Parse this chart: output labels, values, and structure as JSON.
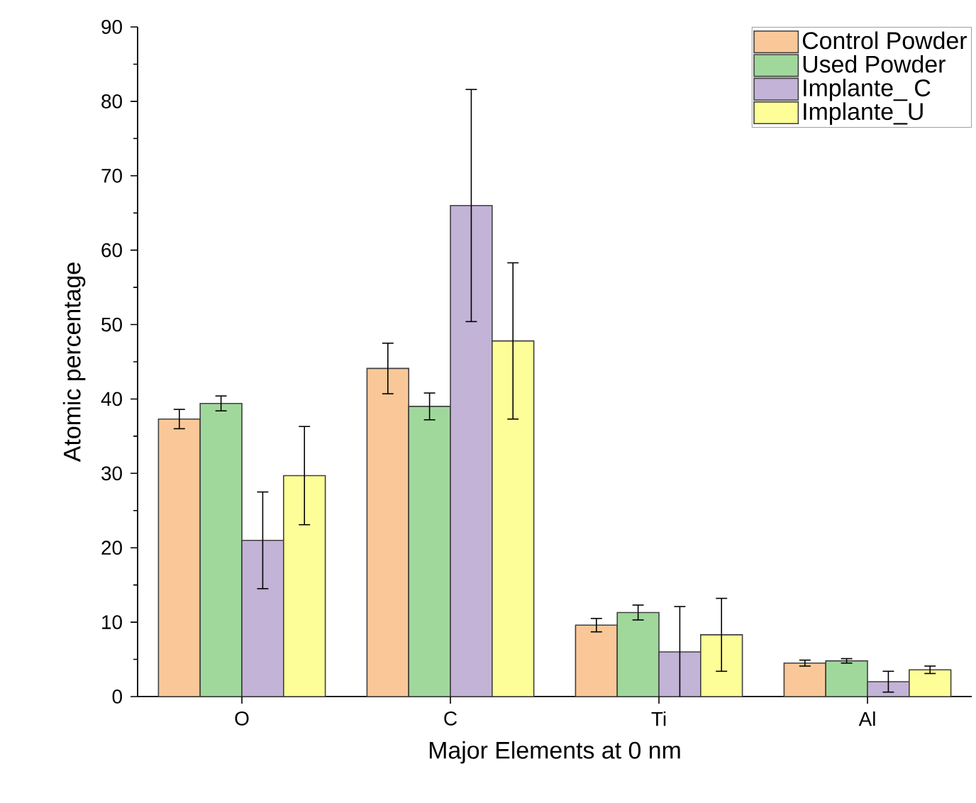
{
  "chart_data": {
    "type": "bar",
    "xlabel": "Major Elements at 0 nm",
    "ylabel": "Atomic percentage",
    "categories": [
      "O",
      "C",
      "Ti",
      "Al"
    ],
    "ylim": [
      0,
      90
    ],
    "yticks": [
      0,
      10,
      20,
      30,
      40,
      50,
      60,
      70,
      80,
      90
    ],
    "legend": "top right",
    "series": [
      {
        "name": "Control Powder",
        "color": "#fac898",
        "values": [
          37.3,
          44.1,
          9.6,
          4.5
        ],
        "errors": [
          1.3,
          3.4,
          0.9,
          0.4
        ]
      },
      {
        "name": "Used Powder",
        "color": "#a0d89c",
        "values": [
          39.4,
          39.0,
          11.3,
          4.8
        ],
        "errors": [
          1.0,
          1.8,
          1.0,
          0.3
        ]
      },
      {
        "name": "Implante_ C",
        "color": "#c3b3d7",
        "values": [
          21.0,
          66.0,
          6.0,
          2.0
        ],
        "errors": [
          6.5,
          15.6,
          6.1,
          1.4
        ]
      },
      {
        "name": "Implante_U",
        "color": "#fefe98",
        "values": [
          29.7,
          47.8,
          8.3,
          3.6
        ],
        "errors": [
          6.6,
          10.5,
          4.9,
          0.5
        ]
      }
    ]
  }
}
